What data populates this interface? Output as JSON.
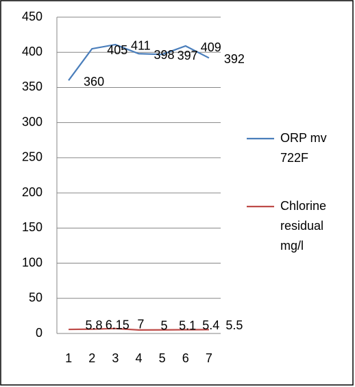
{
  "chart_data": {
    "type": "line",
    "categories": [
      "1",
      "2",
      "3",
      "4",
      "5",
      "6",
      "7"
    ],
    "series": [
      {
        "name": "ORP mv 722F",
        "color": "#4a7ebb",
        "values": [
          360,
          405,
          411,
          398,
          397,
          409,
          392
        ]
      },
      {
        "name": "Chlorine residual mg/l",
        "color": "#be4b48",
        "values": [
          5.8,
          6.15,
          7,
          5,
          5.1,
          5.4,
          5.5
        ]
      }
    ],
    "ylim": [
      0,
      450
    ],
    "yticks": [
      0,
      50,
      100,
      150,
      200,
      250,
      300,
      350,
      400,
      450
    ],
    "grid": true,
    "legend": "right"
  }
}
